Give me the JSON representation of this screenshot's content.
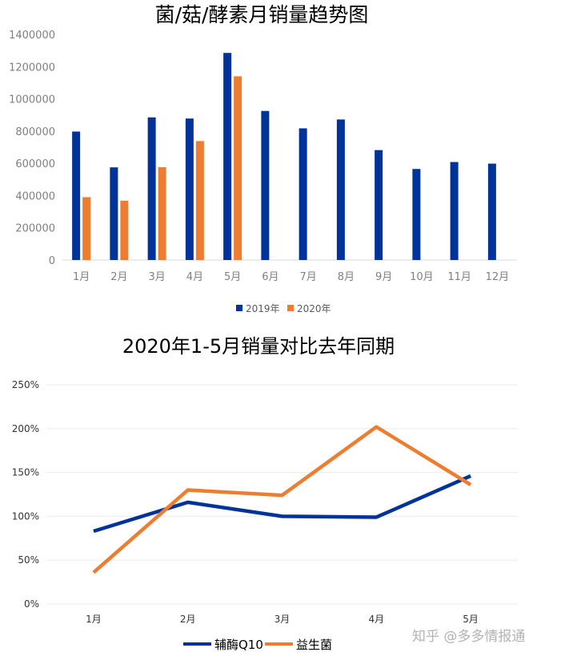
{
  "watermark": "知乎 @多多情报通",
  "chart_data": [
    {
      "type": "bar",
      "title": "菌/菇/酵素月销量趋势图",
      "categories": [
        "1月",
        "2月",
        "3月",
        "4月",
        "5月",
        "6月",
        "7月",
        "8月",
        "9月",
        "10月",
        "11月",
        "12月"
      ],
      "series": [
        {
          "name": "2019年",
          "color": "#003399",
          "values": [
            797000,
            575000,
            885000,
            878000,
            1285000,
            925000,
            817000,
            872000,
            682000,
            565000,
            608000,
            598000
          ]
        },
        {
          "name": "2020年",
          "color": "#ED7D31",
          "values": [
            390000,
            368000,
            576000,
            738000,
            1140000,
            null,
            null,
            null,
            null,
            null,
            null,
            null
          ]
        }
      ],
      "yticks": [
        "0",
        "200000",
        "400000",
        "600000",
        "800000",
        "1000000",
        "1200000",
        "1400000"
      ],
      "ylim": [
        0,
        1400000
      ],
      "grid": false,
      "legend": "bottom"
    },
    {
      "type": "line",
      "title": "2020年1-5月销量对比去年同期",
      "categories": [
        "1月",
        "2月",
        "3月",
        "4月",
        "5月"
      ],
      "series": [
        {
          "name": "辅酶Q10",
          "color": "#003399",
          "values": [
            0.83,
            1.16,
            1.0,
            0.99,
            1.46
          ]
        },
        {
          "name": "益生菌",
          "color": "#ED7D31",
          "values": [
            0.36,
            1.3,
            1.24,
            2.02,
            1.36
          ]
        }
      ],
      "yticks": [
        "0%",
        "50%",
        "100%",
        "150%",
        "200%",
        "250%"
      ],
      "ylim": [
        0,
        2.5
      ],
      "grid": true,
      "legend": "bottom"
    }
  ]
}
